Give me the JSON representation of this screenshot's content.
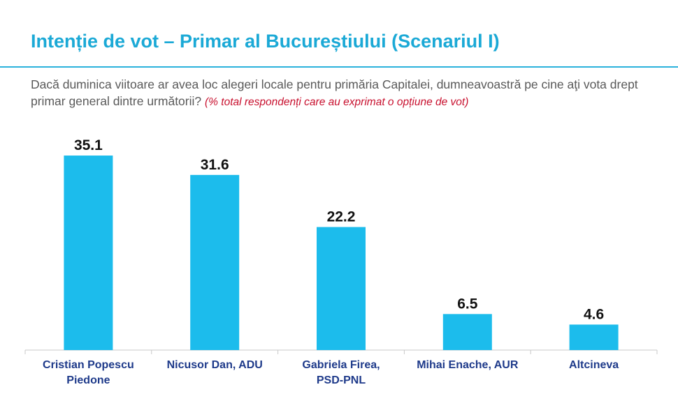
{
  "header": {
    "title": "Intenție de vot – Primar al Bucureștiului (Scenariul I)",
    "question": "Dacă duminica viitoare ar avea loc alegeri locale pentru primăria Capitalei,  dumneavoastră pe cine aţi vota drept primar general dintre următorii?",
    "note": "(% total respondenți care au exprimat o opțiune de vot)"
  },
  "colors": {
    "accent": "#1ba9d6",
    "bar": "#1cbcec",
    "label": "#1e3a8a",
    "note": "#c8102e"
  },
  "chart_data": {
    "type": "bar",
    "title": "Intenție de vot – Primar al Bucureștiului (Scenariul I)",
    "xlabel": "",
    "ylabel": "",
    "ylim": [
      0,
      38
    ],
    "grid": false,
    "legend": "none",
    "categories": [
      [
        "Cristian Popescu",
        "Piedone"
      ],
      [
        "Nicusor Dan, ADU"
      ],
      [
        "Gabriela Firea,",
        "PSD-PNL"
      ],
      [
        "Mihai Enache, AUR"
      ],
      [
        "Altcineva"
      ]
    ],
    "values": [
      35.1,
      31.6,
      22.2,
      6.5,
      4.6
    ],
    "value_labels": [
      "35.1",
      "31.6",
      "22.2",
      "6.5",
      "4.6"
    ]
  }
}
